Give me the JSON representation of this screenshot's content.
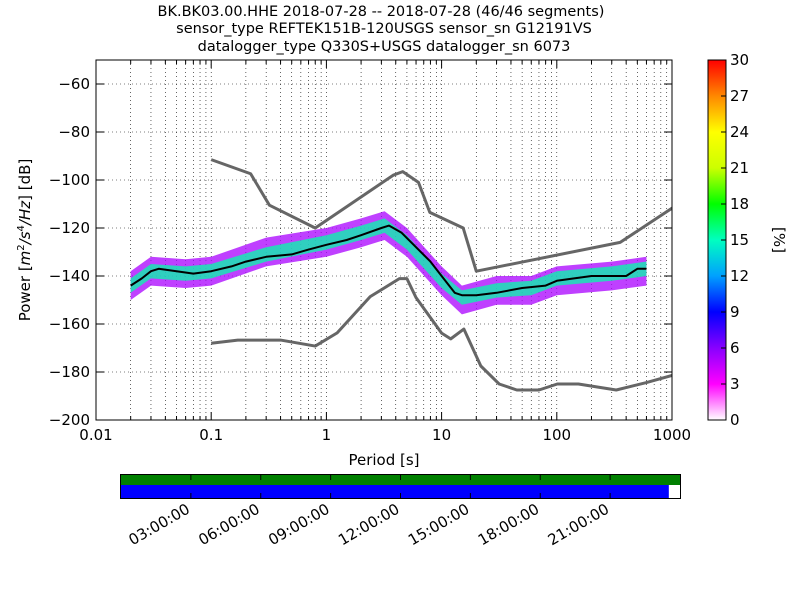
{
  "title_lines": [
    "BK.BK03.00.HHE   2018-07-28 -- 2018-07-28  (46/46 segments)",
    "sensor_type REFTEK151B-120USGS sensor_sn G12191VS",
    "datalogger_type Q330S+USGS datalogger_sn 6073"
  ],
  "chart_data": {
    "type": "heatmap",
    "title": "BK.BK03.00.HHE   2018-07-28 -- 2018-07-28  (46/46 segments)",
    "xlabel": "Period [s]",
    "ylabel": "Power [m²/s⁴/Hz] [dB]",
    "x_scale": "log",
    "xlim": [
      0.01,
      1000
    ],
    "ylim": [
      -200,
      -50
    ],
    "x_ticks": [
      0.01,
      0.1,
      1,
      10,
      100,
      1000
    ],
    "x_tick_labels": [
      "0.01",
      "0.1",
      "1",
      "10",
      "100",
      "1000"
    ],
    "y_ticks": [
      -200,
      -180,
      -160,
      -140,
      -120,
      -100,
      -80,
      -60
    ],
    "y_tick_labels": [
      "−200",
      "−180",
      "−160",
      "−140",
      "−120",
      "−100",
      "−80",
      "−60"
    ],
    "grid": true,
    "colorbar": {
      "label": "[%]",
      "range": [
        0,
        30
      ],
      "ticks": [
        0,
        3,
        6,
        9,
        12,
        15,
        18,
        21,
        24,
        27,
        30
      ],
      "colors": [
        "#ffffff",
        "#ff00ff",
        "#8800ff",
        "#0000ff",
        "#00a0ff",
        "#00ffc0",
        "#00ff00",
        "#ccff00",
        "#ffff00",
        "#ff8800",
        "#ff0000"
      ]
    },
    "density_bands": [
      {
        "name": "spread",
        "color": "#aa00ff",
        "center_db": [
          [
            0.02,
            -144
          ],
          [
            0.03,
            -138
          ],
          [
            0.06,
            -139
          ],
          [
            0.1,
            -138
          ],
          [
            0.3,
            -130
          ],
          [
            1,
            -126
          ],
          [
            2,
            -122
          ],
          [
            3.2,
            -119
          ],
          [
            5,
            -126
          ],
          [
            10,
            -142
          ],
          [
            15,
            -150
          ],
          [
            30,
            -146
          ],
          [
            60,
            -146
          ],
          [
            100,
            -142
          ],
          [
            300,
            -140
          ],
          [
            600,
            -138
          ]
        ],
        "halfwidth_db": 6
      },
      {
        "name": "core",
        "color": "#00ffaa",
        "center_db": [
          [
            0.02,
            -144
          ],
          [
            0.03,
            -138
          ],
          [
            0.06,
            -139
          ],
          [
            0.1,
            -138
          ],
          [
            0.3,
            -131
          ],
          [
            1,
            -126
          ],
          [
            2,
            -122
          ],
          [
            3.2,
            -119
          ],
          [
            5,
            -126
          ],
          [
            10,
            -142
          ],
          [
            15,
            -149
          ],
          [
            30,
            -146
          ],
          [
            60,
            -145
          ],
          [
            100,
            -141
          ],
          [
            300,
            -139
          ],
          [
            600,
            -137
          ]
        ],
        "halfwidth_db": 3
      }
    ],
    "series": [
      {
        "color": "#000000",
        "x": [
          0.02,
          0.025,
          0.03,
          0.035,
          0.05,
          0.07,
          0.1,
          0.15,
          0.2,
          0.3,
          0.5,
          0.7,
          1,
          1.5,
          2,
          3,
          3.5,
          4.5,
          6,
          8,
          10,
          13,
          15,
          20,
          30,
          50,
          80,
          100,
          200,
          300,
          400,
          500,
          600
        ],
        "y": [
          -144,
          -141,
          -138,
          -137,
          -138,
          -139,
          -138,
          -136,
          -134,
          -132,
          -131,
          -129,
          -127,
          -125,
          -123,
          -120,
          -119,
          -122,
          -128,
          -134,
          -140,
          -147,
          -148,
          -148,
          -147,
          -145,
          -144,
          -142,
          -140,
          -140,
          -140,
          -137,
          -137
        ]
      },
      {
        "name": "NHNM",
        "color": "#666666",
        "x": [
          0.1,
          0.22,
          0.32,
          0.8,
          3.8,
          4.6,
          6.3,
          7.9,
          15.4,
          20,
          354.8,
          10000
        ],
        "y": [
          -91.5,
          -97.4,
          -110.5,
          -120,
          -98,
          -96.5,
          -101,
          -113.5,
          -120,
          -138,
          -126,
          -80.1
        ]
      },
      {
        "name": "NLNM",
        "color": "#666666",
        "x": [
          0.1,
          0.17,
          0.4,
          0.8,
          1.24,
          2.4,
          4.3,
          5,
          6,
          10,
          12,
          15.6,
          21.9,
          31.6,
          45,
          70,
          101,
          154,
          328,
          600,
          10000
        ],
        "y": [
          -168,
          -166.7,
          -166.7,
          -169.2,
          -163.7,
          -148.6,
          -141.1,
          -141.1,
          -149,
          -163.8,
          -166.2,
          -162.1,
          -177.5,
          -185,
          -187.5,
          -187.5,
          -185,
          -185,
          -187.5,
          -184.4,
          -168
        ]
      }
    ]
  },
  "time_axis": {
    "tick_labels": [
      "03:00:00",
      "06:00:00",
      "09:00:00",
      "12:00:00",
      "15:00:00",
      "18:00:00",
      "21:00:00"
    ],
    "bars": [
      {
        "color": "#008000",
        "coverage": 1.0
      },
      {
        "color": "#0000ff",
        "coverage": 0.98
      }
    ]
  }
}
